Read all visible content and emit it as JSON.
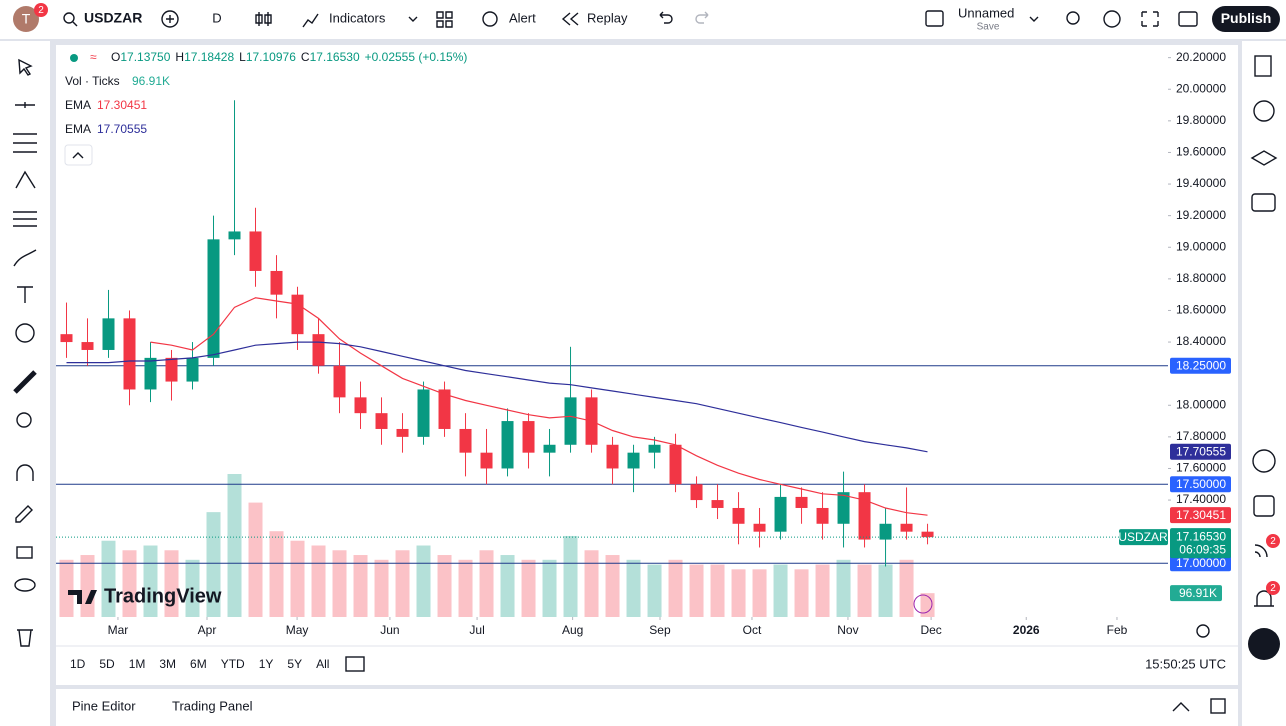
{
  "toolbar": {
    "avatar": "T",
    "avatar_badge": "2",
    "interval": "D",
    "indicators": "Indicators",
    "alert": "Alert",
    "replay": "Replay",
    "layout_name": "Unnamed",
    "layout_save": "Save",
    "publish": "Publish"
  },
  "legend": {
    "ohlc": [
      {
        "k": "O",
        "v": "17.13750"
      },
      {
        "k": "H",
        "v": "17.18428"
      },
      {
        "k": "L",
        "v": "17.10976"
      },
      {
        "k": "C",
        "v": "17.16530"
      }
    ],
    "change": "+0.02555 (+0.15%)",
    "vol_label": "Vol · Ticks",
    "vol_value": "96.91K"
  },
  "watermark": "TradingView",
  "bottom": {
    "ranges": [
      "1D",
      "5D",
      "1M",
      "3M",
      "6M",
      "YTD",
      "1Y",
      "5Y",
      "All"
    ],
    "clock": "15:50:25 UTC",
    "tabs": [
      "Pine Editor",
      "Trading Panel"
    ]
  },
  "sidebar_badges": [
    "2",
    "2"
  ],
  "chart_data": {
    "type": "candlestick",
    "symbol": "USDZAR",
    "x": [
      0.5,
      1.5,
      2.5,
      3.5,
      4.5,
      5.5,
      6.5,
      7.5,
      8.5,
      9.5,
      10.5,
      11.5,
      12.5,
      13.5,
      14.5,
      15.5,
      16.5,
      17.5,
      18.5,
      19.5,
      20.5,
      21.5,
      22.5,
      23.5,
      24.5,
      25.5,
      26.5,
      27.5,
      28.5,
      29.5,
      30.5,
      31.5,
      32.5,
      33.5,
      34.5,
      35.5,
      36.5,
      37.5,
      38.5,
      39.5,
      40.5,
      41.5
    ],
    "open": [
      18.45,
      18.4,
      18.35,
      18.55,
      18.1,
      18.3,
      18.15,
      18.3,
      19.05,
      19.1,
      18.85,
      18.7,
      18.45,
      18.25,
      18.05,
      17.95,
      17.85,
      17.8,
      18.1,
      17.85,
      17.7,
      17.6,
      17.9,
      17.7,
      17.75,
      18.05,
      17.75,
      17.6,
      17.7,
      17.75,
      17.5,
      17.4,
      17.35,
      17.25,
      17.2,
      17.42,
      17.35,
      17.25,
      17.45,
      17.15,
      17.25,
      17.2
    ],
    "high": [
      18.65,
      18.55,
      18.73,
      18.6,
      18.4,
      18.35,
      18.4,
      19.2,
      19.93,
      19.25,
      18.95,
      18.75,
      18.55,
      18.4,
      18.15,
      18.05,
      17.95,
      18.15,
      18.15,
      17.95,
      17.85,
      17.98,
      17.95,
      17.85,
      18.37,
      18.1,
      17.8,
      17.75,
      17.8,
      17.82,
      17.55,
      17.5,
      17.45,
      17.35,
      17.5,
      17.48,
      17.45,
      17.58,
      17.5,
      17.35,
      17.48,
      17.25
    ],
    "low": [
      18.3,
      18.25,
      18.3,
      18.0,
      18.02,
      18.03,
      18.1,
      18.25,
      18.95,
      18.75,
      18.55,
      18.35,
      18.2,
      17.95,
      17.85,
      17.75,
      17.7,
      17.75,
      17.8,
      17.55,
      17.5,
      17.55,
      17.6,
      17.55,
      17.7,
      17.7,
      17.5,
      17.45,
      17.6,
      17.45,
      17.35,
      17.28,
      17.12,
      17.1,
      17.15,
      17.25,
      17.15,
      17.1,
      17.1,
      16.98,
      17.15,
      17.12
    ],
    "close": [
      18.4,
      18.35,
      18.55,
      18.1,
      18.3,
      18.15,
      18.3,
      19.05,
      19.1,
      18.85,
      18.7,
      18.45,
      18.25,
      18.05,
      17.95,
      17.85,
      17.8,
      18.1,
      17.85,
      17.7,
      17.6,
      17.9,
      17.7,
      17.75,
      18.05,
      17.75,
      17.6,
      17.7,
      17.75,
      17.5,
      17.4,
      17.35,
      17.25,
      17.2,
      17.42,
      17.35,
      17.25,
      17.45,
      17.15,
      17.25,
      17.2,
      17.1653
    ],
    "volume": [
      60,
      65,
      80,
      70,
      75,
      70,
      60,
      110,
      150,
      120,
      90,
      80,
      75,
      70,
      65,
      60,
      70,
      75,
      65,
      60,
      70,
      65,
      60,
      60,
      85,
      70,
      65,
      60,
      55,
      60,
      55,
      55,
      50,
      50,
      55,
      50,
      55,
      60,
      55,
      55,
      60,
      25
    ],
    "vlim": [
      0,
      600
    ],
    "up_color": "#089981",
    "down_color": "#f23645",
    "series": [
      {
        "name": "EMA",
        "color": "#f23645",
        "last_label": "17.30451",
        "values": [
          null,
          null,
          null,
          null,
          18.4,
          18.38,
          18.35,
          18.45,
          18.62,
          18.68,
          18.66,
          18.64,
          18.55,
          18.42,
          18.33,
          18.25,
          18.17,
          18.12,
          18.07,
          18.03,
          18.0,
          17.97,
          17.94,
          17.92,
          17.93,
          17.9,
          17.84,
          17.8,
          17.78,
          17.75,
          17.68,
          17.62,
          17.57,
          17.53,
          17.5,
          17.47,
          17.44,
          17.43,
          17.4,
          17.35,
          17.32,
          17.30451
        ]
      },
      {
        "name": "EMA",
        "color": "#2e2f9a",
        "last_label": "17.70555",
        "values": [
          18.27,
          18.27,
          18.27,
          18.28,
          18.28,
          18.29,
          18.3,
          18.32,
          18.35,
          18.38,
          18.39,
          18.4,
          18.4,
          18.39,
          18.37,
          18.34,
          18.31,
          18.28,
          18.25,
          18.22,
          18.2,
          18.18,
          18.16,
          18.14,
          18.13,
          18.11,
          18.09,
          18.07,
          18.05,
          18.03,
          18.01,
          17.98,
          17.95,
          17.92,
          17.89,
          17.86,
          17.83,
          17.8,
          17.77,
          17.75,
          17.73,
          17.70555
        ]
      }
    ],
    "hlines": [
      {
        "value": 18.25,
        "label": "18.25000"
      },
      {
        "value": 17.5,
        "label": "17.50000"
      },
      {
        "value": 17.0,
        "label": "17.00000"
      }
    ],
    "hline_color": "#1e3a8a",
    "hline_box_color": "#2962ff",
    "last": {
      "value": 17.1653,
      "label": "17.16530",
      "countdown": "06:09:35"
    },
    "volume_label": "96.91K",
    "xlim": [
      0,
      52.95
    ],
    "ylim": [
      16.66,
      20.28
    ],
    "xticks": [
      {
        "value": 2.95,
        "label": "Mar"
      },
      {
        "value": 7.19,
        "label": "Apr"
      },
      {
        "value": 11.48,
        "label": "May"
      },
      {
        "value": 15.9,
        "label": "Jun"
      },
      {
        "value": 20.05,
        "label": "Jul"
      },
      {
        "value": 24.6,
        "label": "Aug"
      },
      {
        "value": 28.76,
        "label": "Sep"
      },
      {
        "value": 33.14,
        "label": "Oct"
      },
      {
        "value": 37.71,
        "label": "Nov"
      },
      {
        "value": 41.67,
        "label": "Dec"
      },
      {
        "value": 46.2,
        "label": "2026"
      },
      {
        "value": 50.52,
        "label": "Feb"
      }
    ],
    "yticks": [
      {
        "value": 20.2,
        "label": "20.20000"
      },
      {
        "value": 20.0,
        "label": "20.00000"
      },
      {
        "value": 19.8,
        "label": "19.80000"
      },
      {
        "value": 19.6,
        "label": "19.60000"
      },
      {
        "value": 19.4,
        "label": "19.40000"
      },
      {
        "value": 19.2,
        "label": "19.20000"
      },
      {
        "value": 19.0,
        "label": "19.00000"
      },
      {
        "value": 18.8,
        "label": "18.80000"
      },
      {
        "value": 18.6,
        "label": "18.60000"
      },
      {
        "value": 18.4,
        "label": "18.40000"
      },
      {
        "value": 18.0,
        "label": "18.00000"
      },
      {
        "value": 17.8,
        "label": "17.80000"
      },
      {
        "value": 17.6,
        "label": "17.60000"
      },
      {
        "value": 17.4,
        "label": "17.40000"
      }
    ]
  }
}
